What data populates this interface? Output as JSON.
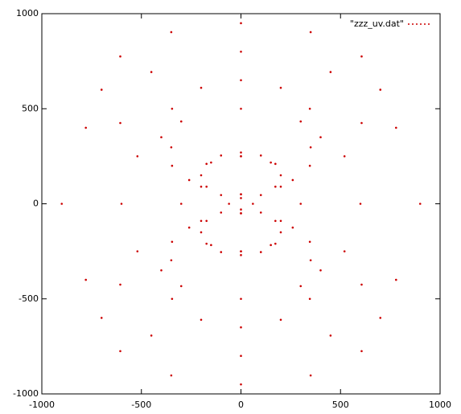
{
  "chart_data": {
    "type": "scatter",
    "legend": "top right",
    "xlim": [
      -1000,
      1000
    ],
    "ylim": [
      -1000,
      1000
    ],
    "xticks": [
      -1000,
      -500,
      0,
      500,
      1000
    ],
    "yticks": [
      -1000,
      -500,
      0,
      500,
      1000
    ],
    "x": [
      300,
      260,
      150,
      0,
      -150,
      -260,
      -300,
      -260,
      -150,
      0,
      150,
      260,
      600,
      520,
      300,
      0,
      -300,
      -520,
      -600,
      -520,
      -300,
      0,
      300,
      520,
      900,
      779,
      450,
      0,
      -450,
      -779,
      -900,
      -779,
      -450,
      0,
      450,
      779,
      200,
      173,
      100,
      0,
      -100,
      -173,
      -200,
      -173,
      -100,
      0,
      100,
      173,
      200,
      173,
      100,
      0,
      -100,
      -173,
      -200,
      -173,
      -100,
      0,
      100,
      173,
      400,
      346,
      200,
      0,
      -200,
      -346,
      -400,
      -346,
      -200,
      0,
      200,
      346,
      400,
      346,
      200,
      0,
      -200,
      -346,
      -400,
      -346,
      -200,
      0,
      200,
      346,
      700,
      606,
      350,
      0,
      -350,
      -606,
      -700,
      -606,
      -350,
      0,
      350,
      606,
      700,
      606,
      350,
      0,
      -350,
      -606,
      -700,
      -606,
      -350,
      0,
      350,
      606,
      60,
      0,
      -60,
      0
    ],
    "series": [
      {
        "name": "\"zzz_uv.dat\"",
        "color": "#cc0000",
        "values": [
          0,
          125,
          217,
          250,
          217,
          125,
          0,
          -125,
          -217,
          -250,
          -217,
          -125,
          0,
          250,
          433,
          500,
          433,
          250,
          0,
          -250,
          -433,
          -500,
          -433,
          -250,
          0,
          400,
          693,
          800,
          693,
          400,
          0,
          -400,
          -693,
          -800,
          -693,
          -400,
          150,
          210,
          254,
          270,
          254,
          210,
          150,
          90,
          46,
          30,
          46,
          90,
          -150,
          -210,
          -254,
          -270,
          -254,
          -210,
          -150,
          -90,
          -46,
          -30,
          -46,
          -90,
          350,
          500,
          610,
          650,
          610,
          500,
          350,
          200,
          90,
          50,
          90,
          200,
          -350,
          -500,
          -610,
          -650,
          -610,
          -500,
          -350,
          -200,
          -90,
          -50,
          -90,
          -200,
          600,
          775,
          903,
          950,
          903,
          775,
          600,
          425,
          297,
          250,
          297,
          425,
          -600,
          -775,
          -903,
          -950,
          -903,
          -775,
          -600,
          -425,
          -297,
          -250,
          -297,
          -425,
          0,
          50,
          0,
          -50
        ]
      }
    ]
  }
}
